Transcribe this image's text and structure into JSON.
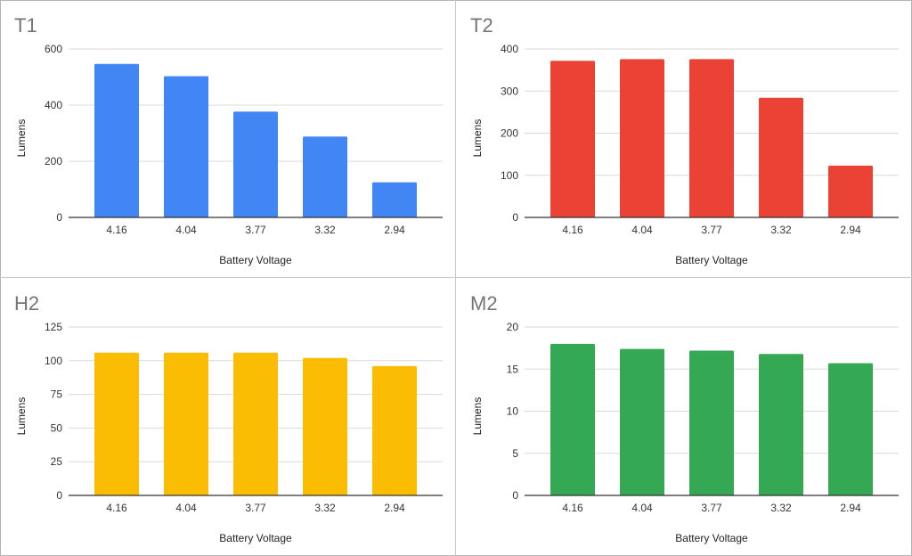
{
  "chart_data": [
    {
      "type": "bar",
      "title": "T1",
      "xlabel": "Battery Voltage",
      "ylabel": "Lumens",
      "categories": [
        "4.16",
        "4.04",
        "3.77",
        "3.32",
        "2.94"
      ],
      "values": [
        547,
        503,
        377,
        288,
        125
      ],
      "ylim": [
        0,
        600
      ],
      "yticks": [
        "0",
        "200",
        "400",
        "600"
      ],
      "ytick_values": [
        0,
        200,
        400,
        600
      ],
      "color": "#4285F4",
      "grid": true,
      "legend": "none"
    },
    {
      "type": "bar",
      "title": "T2",
      "xlabel": "Battery Voltage",
      "ylabel": "Lumens",
      "categories": [
        "4.16",
        "4.04",
        "3.77",
        "3.32",
        "2.94"
      ],
      "values": [
        372,
        376,
        376,
        284,
        123
      ],
      "ylim": [
        0,
        400
      ],
      "yticks": [
        "0",
        "100",
        "200",
        "300",
        "400"
      ],
      "ytick_values": [
        0,
        100,
        200,
        300,
        400
      ],
      "color": "#EA4335",
      "grid": true,
      "legend": "none"
    },
    {
      "type": "bar",
      "title": "H2",
      "xlabel": "Battery Voltage",
      "ylabel": "Lumens",
      "categories": [
        "4.16",
        "4.04",
        "3.77",
        "3.32",
        "2.94"
      ],
      "values": [
        106,
        106,
        106,
        102,
        96
      ],
      "ylim": [
        0,
        125
      ],
      "yticks": [
        "0",
        "25",
        "50",
        "75",
        "100",
        "125"
      ],
      "ytick_values": [
        0,
        25,
        50,
        75,
        100,
        125
      ],
      "color": "#FBBC04",
      "grid": true,
      "legend": "none"
    },
    {
      "type": "bar",
      "title": "M2",
      "xlabel": "Battery Voltage",
      "ylabel": "Lumens",
      "categories": [
        "4.16",
        "4.04",
        "3.77",
        "3.32",
        "2.94"
      ],
      "values": [
        18.0,
        17.4,
        17.2,
        16.8,
        15.7
      ],
      "ylim": [
        0,
        20
      ],
      "yticks": [
        "0",
        "5",
        "10",
        "15",
        "20"
      ],
      "ytick_values": [
        0,
        5,
        10,
        15,
        20
      ],
      "color": "#34A853",
      "grid": true,
      "legend": "none"
    }
  ]
}
